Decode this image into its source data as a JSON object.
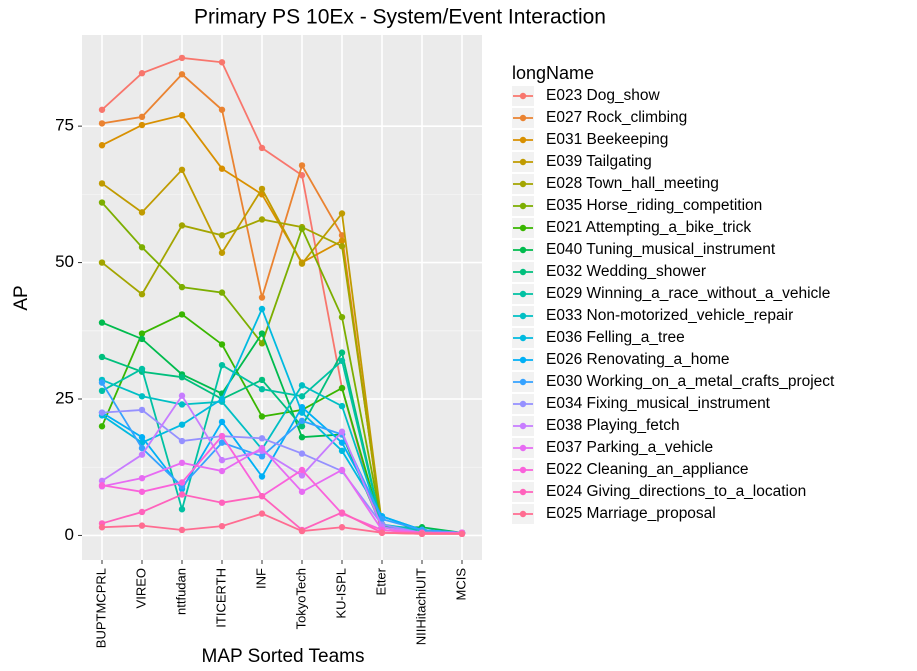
{
  "chart_data": {
    "type": "line",
    "title": "Primary PS 10Ex - System/Event Interaction",
    "x_label": "MAP Sorted Teams",
    "y_label": "AP",
    "legend_title": "longName",
    "categories": [
      "BUPTMCPRL",
      "VIREO",
      "nttfudan",
      "ITICERTH",
      "INF",
      "TokyoTech",
      "KU-ISPL",
      "Etter",
      "NIIHitachiUIT",
      "MCIS"
    ],
    "ylim": [
      -4.5,
      91.7
    ],
    "yticks": [
      0,
      25,
      50,
      75
    ],
    "grid": true,
    "legend": "right",
    "series": [
      {
        "name": "E023 Dog_show",
        "color": "#F8766D",
        "values": [
          78,
          84.7,
          87.5,
          86.7,
          71,
          66,
          27,
          0.5,
          0.3,
          0.3
        ]
      },
      {
        "name": "E027 Rock_climbing",
        "color": "#EA8331",
        "values": [
          75.5,
          76.7,
          84.5,
          78,
          43.6,
          67.8,
          55,
          1,
          0.5,
          0.5
        ]
      },
      {
        "name": "E031 Beekeeping",
        "color": "#D89000",
        "values": [
          71.5,
          75.2,
          77,
          67.2,
          62.5,
          50,
          54,
          1.5,
          0.5,
          0.5
        ]
      },
      {
        "name": "E039 Tailgating",
        "color": "#C09B00",
        "values": [
          64.5,
          59.2,
          67,
          51.8,
          63.5,
          49.8,
          59,
          2,
          0.5,
          0.5
        ]
      },
      {
        "name": "E028 Town_hall_meeting",
        "color": "#A3A500",
        "values": [
          50,
          44.2,
          56.8,
          55,
          57.9,
          56.5,
          53,
          2,
          0.5,
          0.5
        ]
      },
      {
        "name": "E035 Horse_riding_competition",
        "color": "#7CAE00",
        "values": [
          61,
          52.8,
          45.5,
          44.5,
          35.2,
          56.2,
          40,
          2,
          0.5,
          0.5
        ]
      },
      {
        "name": "E021 Attempting_a_bike_trick",
        "color": "#39B600",
        "values": [
          20,
          37,
          40.5,
          35,
          21.8,
          23,
          27,
          1.5,
          1,
          0.5
        ]
      },
      {
        "name": "E040 Tuning_musical_instrument",
        "color": "#00BB4E",
        "values": [
          39,
          36,
          29.5,
          26,
          37,
          18,
          18.5,
          1.5,
          1.5,
          0.5
        ]
      },
      {
        "name": "E032 Wedding_shower",
        "color": "#00BF7D",
        "values": [
          32.7,
          30,
          29,
          25,
          28.5,
          20,
          33.5,
          1.5,
          1,
          0.5
        ]
      },
      {
        "name": "E029 Winning_a_race_without_a_vehicle",
        "color": "#00C1A3",
        "values": [
          26.5,
          30.5,
          4.8,
          31.2,
          26.8,
          25.5,
          32,
          1.5,
          1,
          0.5
        ]
      },
      {
        "name": "E033 Non-motorized_vehicle_repair",
        "color": "#00BFC4",
        "values": [
          28.5,
          25.5,
          24,
          24.5,
          15.8,
          27.5,
          23.7,
          2,
          1,
          0.5
        ]
      },
      {
        "name": "E036 Felling_a_tree",
        "color": "#00BAE0",
        "values": [
          22,
          17,
          20.3,
          25,
          41.5,
          22.5,
          15.5,
          3.5,
          1,
          0.5
        ]
      },
      {
        "name": "E026 Renovating_a_home",
        "color": "#00B0F6",
        "values": [
          22.5,
          18,
          8.5,
          20.8,
          10.8,
          23.5,
          17,
          3.5,
          1,
          0.5
        ]
      },
      {
        "name": "E030 Working_on_a_metal_crafts_project",
        "color": "#35A2FF",
        "values": [
          28,
          16,
          9,
          17,
          14.5,
          21,
          18.5,
          3,
          1,
          0.5
        ]
      },
      {
        "name": "E034 Fixing_musical_instrument",
        "color": "#9590FF",
        "values": [
          22.5,
          23,
          17.3,
          18.2,
          17.8,
          15,
          11.8,
          2,
          0.5,
          0.5
        ]
      },
      {
        "name": "E038 Playing_fetch",
        "color": "#C77CFF",
        "values": [
          10,
          14.8,
          25.6,
          13.8,
          15.5,
          11,
          19,
          1.5,
          0.5,
          0.5
        ]
      },
      {
        "name": "E037 Parking_a_vehicle",
        "color": "#E76BF3",
        "values": [
          9,
          10.5,
          13.3,
          11.8,
          16,
          8,
          12,
          1,
          0.5,
          0.5
        ]
      },
      {
        "name": "E022 Cleaning_an_appliance",
        "color": "#FA62DB",
        "values": [
          9.2,
          8,
          9.7,
          18.2,
          7.2,
          12,
          4,
          1,
          0.5,
          0.5
        ]
      },
      {
        "name": "E024 Giving_directions_to_a_location",
        "color": "#FF62BC",
        "values": [
          2.2,
          4.3,
          7.5,
          6,
          7.2,
          1,
          4.2,
          0.5,
          0.5,
          0.3
        ]
      },
      {
        "name": "E025 Marriage_proposal",
        "color": "#FF6C91",
        "values": [
          1.5,
          1.8,
          1,
          1.7,
          4,
          0.8,
          1.5,
          0.5,
          0.3,
          0.3
        ]
      }
    ]
  }
}
